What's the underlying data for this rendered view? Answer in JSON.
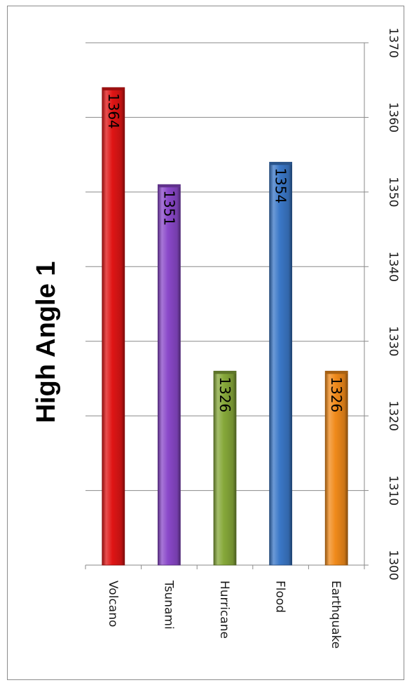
{
  "chart_data": {
    "type": "bar",
    "orientation": "rotated-90-clockwise",
    "title": "High Angle 1",
    "categories": [
      "Volcano",
      "Tsunami",
      "Hurricane",
      "Flood",
      "Earthquake"
    ],
    "values": [
      1364,
      1351,
      1326,
      1354,
      1326
    ],
    "data_labels": [
      "1364",
      "1351",
      "1326",
      "1354",
      "1326"
    ],
    "ylim": [
      1300,
      1370
    ],
    "y_ticks": [
      "1300",
      "1310",
      "1320",
      "1330",
      "1340",
      "1350",
      "1360",
      "1370"
    ],
    "grid": true,
    "legend": "none",
    "colors": {
      "Volcano": "#e01515",
      "Tsunami": "#8a48c9",
      "Hurricane": "#86a83a",
      "Flood": "#3b78c8",
      "Earthquake": "#f08a1a"
    }
  }
}
